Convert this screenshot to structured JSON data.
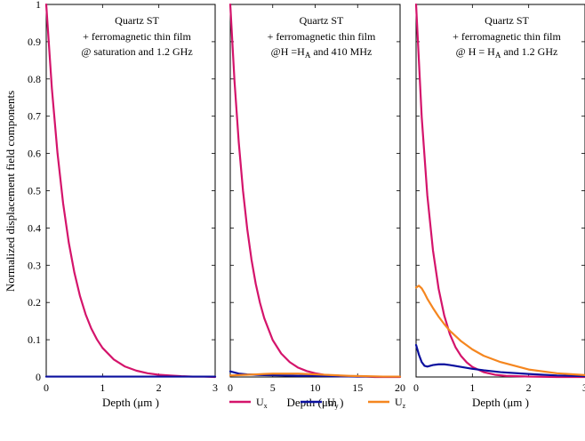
{
  "figure": {
    "ylabel": "Normalized displacement field components"
  },
  "colors": {
    "Ux": "#d4146b",
    "Uy": "#0a0f9e",
    "Uz": "#f5861f"
  },
  "legend": {
    "placement": "bottom-center",
    "items": [
      {
        "key": "Ux",
        "base": "U",
        "sub": "x"
      },
      {
        "key": "Uy",
        "base": "U",
        "sub": "y"
      },
      {
        "key": "Uz",
        "base": "U",
        "sub": "z"
      }
    ]
  },
  "chart_data": [
    {
      "type": "line",
      "annotation": {
        "line1": "Quartz ST",
        "line2": "+ ferromagnetic thin film",
        "line3": "@ saturation and 1.2 GHz"
      },
      "xlabel": "Depth (μm )",
      "xlim": [
        0,
        3
      ],
      "ylim": [
        0,
        1
      ],
      "xticks": [
        "0",
        "1",
        "2",
        "3"
      ],
      "yticks": [
        "0",
        "0.1",
        "0.2",
        "0.3",
        "0.4",
        "0.5",
        "0.6",
        "0.7",
        "0.8",
        "0.9",
        "1"
      ],
      "series": [
        {
          "key": "Ux",
          "x": [
            0,
            0.1,
            0.2,
            0.3,
            0.4,
            0.5,
            0.6,
            0.7,
            0.8,
            0.9,
            1.0,
            1.2,
            1.4,
            1.6,
            1.8,
            2.0,
            2.2,
            2.4,
            2.6,
            2.8,
            3.0
          ],
          "y": [
            1,
            0.775,
            0.601,
            0.466,
            0.361,
            0.28,
            0.217,
            0.168,
            0.13,
            0.101,
            0.078,
            0.047,
            0.028,
            0.017,
            0.01,
            0.006,
            0.004,
            0.002,
            0.001,
            0.001,
            0.0
          ]
        },
        {
          "key": "Uy",
          "x": [
            0,
            0.5,
            1,
            1.5,
            2,
            2.5,
            3
          ],
          "y": [
            0.001,
            0.001,
            0.001,
            0.001,
            0.001,
            0.001,
            0.001
          ]
        }
      ]
    },
    {
      "type": "line",
      "annotation": {
        "line1": "Quartz ST",
        "line2": "+ ferromagnetic thin film",
        "line3_pre": "@H =H",
        "line3_sub": "A",
        "line3_post": " and 410 MHz"
      },
      "xlabel": "Depth (μm )",
      "xlim": [
        0,
        20
      ],
      "ylim": [
        0,
        1
      ],
      "xticks": [
        "0",
        "5",
        "10",
        "15",
        "20"
      ],
      "series": [
        {
          "key": "Ux",
          "x": [
            0,
            0.5,
            1,
            1.5,
            2,
            2.5,
            3,
            3.5,
            4,
            5,
            6,
            7,
            8,
            9,
            10,
            11,
            12,
            13,
            14,
            15,
            16,
            17,
            18,
            19,
            20
          ],
          "y": [
            1,
            0.794,
            0.63,
            0.5,
            0.397,
            0.315,
            0.25,
            0.199,
            0.158,
            0.099,
            0.063,
            0.04,
            0.025,
            0.016,
            0.01,
            0.006,
            0.004,
            0.002,
            0.002,
            0.001,
            0.001,
            0.0,
            0.0,
            0.0,
            0.0
          ]
        },
        {
          "key": "Uy",
          "x": [
            0,
            0.5,
            1,
            2,
            3,
            4,
            6,
            8,
            10,
            12,
            15,
            20
          ],
          "y": [
            0.015,
            0.012,
            0.009,
            0.007,
            0.006,
            0.005,
            0.004,
            0.003,
            0.003,
            0.002,
            0.001,
            0.001
          ]
        },
        {
          "key": "Uz",
          "x": [
            0,
            1,
            2,
            3,
            4,
            5,
            6,
            7,
            8,
            9,
            10,
            12,
            14,
            16,
            18,
            20
          ],
          "y": [
            0.004,
            0.005,
            0.006,
            0.007,
            0.008,
            0.009,
            0.009,
            0.009,
            0.009,
            0.008,
            0.007,
            0.005,
            0.003,
            0.002,
            0.001,
            0.001
          ]
        }
      ]
    },
    {
      "type": "line",
      "annotation": {
        "line1": "Quartz ST",
        "line2": "+ ferromagnetic thin film",
        "line3_pre": "@ H = H",
        "line3_sub": "A",
        "line3_post": " and 1.2 GHz"
      },
      "xlabel": "Depth (μm )",
      "xlim": [
        0,
        3
      ],
      "ylim": [
        0,
        1
      ],
      "xticks": [
        "0",
        "1",
        "2",
        "3"
      ],
      "series": [
        {
          "key": "Ux",
          "x": [
            0,
            0.1,
            0.2,
            0.3,
            0.4,
            0.5,
            0.6,
            0.7,
            0.8,
            0.9,
            1.0,
            1.2,
            1.4,
            1.6,
            1.8,
            2.0,
            2.5,
            3.0
          ],
          "y": [
            1,
            0.698,
            0.487,
            0.34,
            0.237,
            0.165,
            0.115,
            0.08,
            0.056,
            0.039,
            0.027,
            0.013,
            0.006,
            0.003,
            0.002,
            0.001,
            0.0,
            0.0
          ]
        },
        {
          "key": "Uy",
          "x": [
            0,
            0.05,
            0.1,
            0.15,
            0.2,
            0.3,
            0.4,
            0.5,
            0.6,
            0.8,
            1.0,
            1.2,
            1.5,
            2.0,
            2.5,
            3.0
          ],
          "y": [
            0.086,
            0.06,
            0.04,
            0.03,
            0.028,
            0.032,
            0.034,
            0.034,
            0.032,
            0.027,
            0.022,
            0.018,
            0.013,
            0.008,
            0.004,
            0.002
          ]
        },
        {
          "key": "Uz",
          "x": [
            0,
            0.05,
            0.1,
            0.15,
            0.2,
            0.3,
            0.4,
            0.5,
            0.6,
            0.8,
            1.0,
            1.2,
            1.5,
            2.0,
            2.5,
            3.0
          ],
          "y": [
            0.24,
            0.245,
            0.238,
            0.225,
            0.21,
            0.185,
            0.162,
            0.142,
            0.124,
            0.096,
            0.074,
            0.057,
            0.04,
            0.02,
            0.01,
            0.005
          ]
        }
      ]
    }
  ]
}
